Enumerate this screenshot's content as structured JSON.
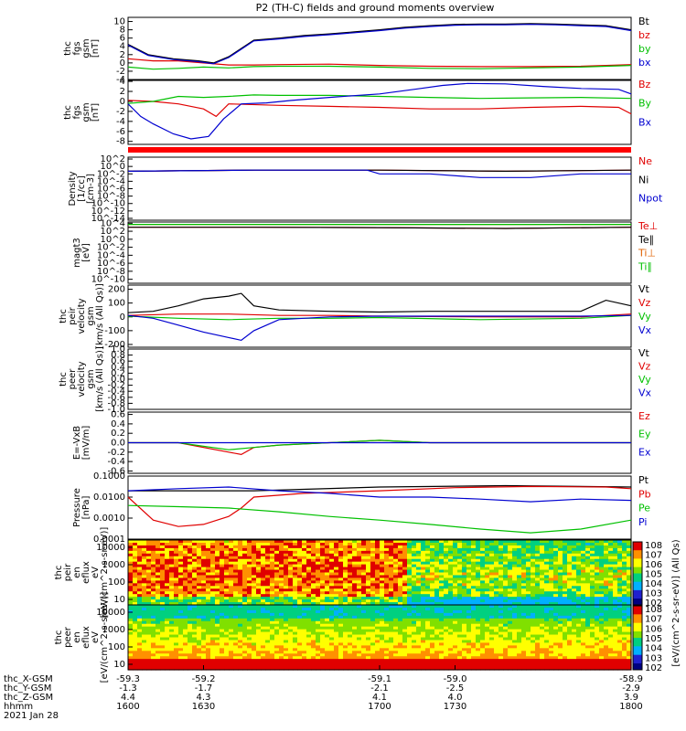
{
  "title": "P2 (TH-C) fields and ground moments overview",
  "x_axis": {
    "tick_labels_row1": [
      "-59.3",
      "-59.2",
      "-59.1",
      "-59.0",
      "-58.9"
    ],
    "tick_labels_row2": [
      "-1.3",
      "-1.7",
      "-2.1",
      "-2.5",
      "-2.9"
    ],
    "tick_labels_row3": [
      "4.4",
      "4.3",
      "4.1",
      "4.0",
      "3.9"
    ],
    "tick_labels_row4": [
      "1600",
      "1630",
      "1700",
      "1730",
      "1800"
    ],
    "row_labels": [
      "thc_X-GSM",
      "thc_Y-GSM",
      "thc_Z-GSM",
      "hhmm"
    ],
    "date": "2021 Jan 28"
  },
  "colorbar": {
    "label": "[eV/(cm^2-s-sr-eV)] (All Qs)",
    "top_ticks": [
      "10^8",
      "10^7",
      "10^6",
      "10^5",
      "10^4",
      "10^3",
      "10^2"
    ],
    "bottom_ticks": [
      "10^8",
      "10^7",
      "10^6",
      "10^5",
      "10^4",
      "10^3",
      "10^2"
    ]
  },
  "chart_data": [
    {
      "type": "line",
      "panel": "fgs_gsm",
      "ylabel": [
        "thc",
        "fgs",
        "gsm",
        "[nT]"
      ],
      "yticks": [
        "10",
        "8",
        "6",
        "4",
        "2",
        "0",
        "-2",
        "-4"
      ],
      "ylim": [
        -4,
        11
      ],
      "series": [
        {
          "name": "Bt",
          "color": "#000000",
          "x": [
            1600,
            1608,
            1618,
            1628,
            1634,
            1640,
            1650,
            1660,
            1670,
            1680,
            1690,
            1700,
            1710,
            1720,
            1730,
            1740,
            1750,
            1760,
            1770,
            1780,
            1790,
            1800
          ],
          "y": [
            4.5,
            2.0,
            1.0,
            0.5,
            0.0,
            1.5,
            5.5,
            6.0,
            6.6,
            7.0,
            7.5,
            8.0,
            8.6,
            9.0,
            9.3,
            9.4,
            9.4,
            9.5,
            9.4,
            9.2,
            9.0,
            8.0
          ]
        },
        {
          "name": "bz",
          "color": "#e00000",
          "x": [
            1600,
            1610,
            1620,
            1630,
            1640,
            1650,
            1660,
            1680,
            1700,
            1720,
            1740,
            1760,
            1780,
            1800
          ],
          "y": [
            1.0,
            0.5,
            0.5,
            0.0,
            -0.5,
            -0.5,
            -0.4,
            -0.3,
            -0.6,
            -0.8,
            -0.9,
            -0.9,
            -0.8,
            -0.4
          ]
        },
        {
          "name": "by",
          "color": "#00c000",
          "x": [
            1600,
            1610,
            1620,
            1630,
            1640,
            1650,
            1660,
            1680,
            1700,
            1720,
            1740,
            1760,
            1780,
            1800
          ],
          "y": [
            -1.0,
            -1.5,
            -1.3,
            -1.0,
            -1.2,
            -0.9,
            -0.8,
            -0.8,
            -1.0,
            -1.3,
            -1.4,
            -1.2,
            -1.0,
            -0.6
          ]
        },
        {
          "name": "bx",
          "color": "#0000d0",
          "x": [
            1600,
            1608,
            1618,
            1628,
            1634,
            1640,
            1650,
            1660,
            1670,
            1680,
            1690,
            1700,
            1710,
            1720,
            1730,
            1740,
            1750,
            1760,
            1770,
            1780,
            1790,
            1800
          ],
          "y": [
            4.3,
            1.8,
            0.8,
            0.3,
            -0.2,
            1.3,
            5.3,
            5.8,
            6.4,
            6.8,
            7.3,
            7.8,
            8.4,
            8.8,
            9.1,
            9.2,
            9.2,
            9.3,
            9.2,
            9.0,
            8.8,
            7.8
          ]
        }
      ],
      "legend": [
        "Bt",
        "bz",
        "by",
        "bx"
      ]
    },
    {
      "type": "line",
      "panel": "fgs_gsm_components",
      "ylabel": [
        "thc",
        "fgs",
        "gsm",
        "[nT]"
      ],
      "yticks": [
        "4",
        "2",
        "0",
        "-2",
        "-4",
        "-6",
        "-8"
      ],
      "ylim": [
        -8.6,
        4.2
      ],
      "series": [
        {
          "name": "Bz",
          "color": "#e00000",
          "x": [
            1600,
            1610,
            1620,
            1630,
            1635,
            1640,
            1660,
            1680,
            1700,
            1720,
            1740,
            1760,
            1780,
            1795,
            1800
          ],
          "y": [
            0.2,
            0.0,
            -0.5,
            -1.5,
            -3.0,
            -0.5,
            -0.8,
            -1.0,
            -1.2,
            -1.5,
            -1.5,
            -1.2,
            -1.0,
            -1.2,
            -2.5
          ]
        },
        {
          "name": "By",
          "color": "#00c000",
          "x": [
            1600,
            1610,
            1620,
            1630,
            1640,
            1650,
            1660,
            1680,
            1700,
            1720,
            1740,
            1760,
            1780,
            1800
          ],
          "y": [
            -0.4,
            0.0,
            1.0,
            0.8,
            1.0,
            1.3,
            1.2,
            1.2,
            1.0,
            0.8,
            0.6,
            0.7,
            0.8,
            0.6
          ]
        },
        {
          "name": "Bx",
          "color": "#0000d0",
          "x": [
            1600,
            1605,
            1610,
            1618,
            1625,
            1632,
            1638,
            1645,
            1655,
            1665,
            1680,
            1700,
            1715,
            1725,
            1735,
            1750,
            1765,
            1780,
            1795,
            1800
          ],
          "y": [
            -0.5,
            -3.0,
            -4.5,
            -6.5,
            -7.5,
            -7.0,
            -3.5,
            -0.5,
            -0.3,
            0.2,
            0.8,
            1.5,
            2.5,
            3.2,
            3.6,
            3.5,
            3.0,
            2.6,
            2.4,
            1.5
          ]
        }
      ],
      "legend": [
        "Bz",
        "By",
        "Bx"
      ]
    },
    {
      "type": "line",
      "panel": "density",
      "ylabel": [
        "Density",
        "[1/cc]",
        "[cm-3]"
      ],
      "yticks": [
        "10^2",
        "10^0",
        "10^-2",
        "10^-4",
        "10^-6",
        "10^-8",
        "10^-10",
        "10^-12",
        "10^-14"
      ],
      "ylim_log10": [
        -14.5,
        2.5
      ],
      "series": [
        {
          "name": "Ne",
          "color": "#e00000",
          "x": [
            1600,
            1650,
            1700,
            1750,
            1800
          ],
          "y": [
            0.05,
            0.1,
            0.1,
            0.05,
            0.1
          ]
        },
        {
          "name": "Ni",
          "color": "#000000",
          "x": [
            1600,
            1650,
            1700,
            1750,
            1800
          ],
          "y": [
            0.05,
            0.1,
            0.1,
            0.05,
            0.1
          ]
        },
        {
          "name": "Npot",
          "color": "#0000d0",
          "x": [
            1600,
            1650,
            1695,
            1700,
            1720,
            1740,
            1760,
            1780,
            1800
          ],
          "y": [
            0.05,
            0.1,
            0.1,
            0.01,
            0.01,
            0.001,
            0.001,
            0.01,
            0.01
          ]
        }
      ],
      "legend": [
        "Ne",
        "Ni",
        "Npot"
      ]
    },
    {
      "type": "line",
      "panel": "temperature",
      "ylabel": [
        "magt3",
        "[eV]"
      ],
      "yticks": [
        "10^4",
        "10^2",
        "10^0",
        "10^-2",
        "10^-4",
        "10^-6",
        "10^-8",
        "10^-10"
      ],
      "ylim_log10": [
        -11,
        4.3
      ],
      "series": [
        {
          "name": "Te⊥",
          "color": "#e00000",
          "x": [
            1600,
            1650,
            1700,
            1750,
            1800
          ],
          "y": [
            1000,
            1000,
            800,
            500,
            1000
          ]
        },
        {
          "name": "Te∥",
          "color": "#000000",
          "x": [
            1600,
            1650,
            1700,
            1750,
            1800
          ],
          "y": [
            1000,
            1000,
            800,
            500,
            1000
          ]
        },
        {
          "name": "Ti⊥",
          "color": "#e06000",
          "x": [
            1600,
            1650,
            1700,
            1750,
            1800
          ],
          "y": [
            5000,
            5000,
            5000,
            5000,
            5000
          ]
        },
        {
          "name": "Ti∥",
          "color": "#00c000",
          "x": [
            1600,
            1650,
            1700,
            1750,
            1800
          ],
          "y": [
            5000,
            5000,
            5000,
            5000,
            5000
          ]
        }
      ],
      "legend": [
        "Te⊥",
        "Te∥",
        "Ti⊥",
        "Ti∥"
      ]
    },
    {
      "type": "line",
      "panel": "peir_velocity",
      "ylabel": [
        "thc",
        "peir",
        "velocity",
        "gsm",
        "[km/s (All Qs)]"
      ],
      "yticks": [
        "200",
        "100",
        "0",
        "-100",
        "-200"
      ],
      "ylim": [
        -220,
        230
      ],
      "series": [
        {
          "name": "Vt",
          "color": "#000000",
          "x": [
            1600,
            1610,
            1620,
            1630,
            1640,
            1645,
            1650,
            1660,
            1680,
            1700,
            1720,
            1740,
            1760,
            1780,
            1790,
            1800
          ],
          "y": [
            30,
            40,
            80,
            130,
            150,
            170,
            80,
            50,
            40,
            35,
            40,
            40,
            40,
            40,
            120,
            80
          ]
        },
        {
          "name": "Vz",
          "color": "#e00000",
          "x": [
            1600,
            1620,
            1640,
            1660,
            1680,
            1700,
            1740,
            1780,
            1800
          ],
          "y": [
            10,
            20,
            20,
            10,
            10,
            5,
            0,
            0,
            20
          ]
        },
        {
          "name": "Vy",
          "color": "#00c000",
          "x": [
            1600,
            1620,
            1640,
            1660,
            1680,
            1700,
            1740,
            1780,
            1800
          ],
          "y": [
            5,
            -10,
            -20,
            -10,
            -10,
            -5,
            -20,
            -10,
            10
          ]
        },
        {
          "name": "Vx",
          "color": "#0000d0",
          "x": [
            1600,
            1610,
            1620,
            1630,
            1640,
            1645,
            1650,
            1660,
            1680,
            1700,
            1740,
            1780,
            1800
          ],
          "y": [
            10,
            -10,
            -60,
            -110,
            -150,
            -170,
            -100,
            -20,
            0,
            5,
            5,
            5,
            10
          ]
        }
      ],
      "legend": [
        "Vt",
        "Vz",
        "Vy",
        "Vx"
      ]
    },
    {
      "type": "line",
      "panel": "peer_velocity",
      "ylabel": [
        "thc",
        "peer",
        "velocity",
        "gsm",
        "[km/s (All Qs)]"
      ],
      "yticks": [
        "1.0",
        "0.8",
        "0.6",
        "0.4",
        "0.2",
        "0.0",
        "-0.2",
        "-0.4",
        "-0.6",
        "-0.8",
        "-1.0"
      ],
      "ylim": [
        -1.0,
        1.0
      ],
      "series": [],
      "legend": [
        "Vt",
        "Vz",
        "Vy",
        "Vx"
      ]
    },
    {
      "type": "line",
      "panel": "efield",
      "ylabel": [
        "E=-VxB",
        "[mV/m]"
      ],
      "yticks": [
        "0.6",
        "0.4",
        "0.2",
        "0.0",
        "-0.2",
        "-0.4",
        "-0.6"
      ],
      "ylim": [
        -0.65,
        0.65
      ],
      "series": [
        {
          "name": "Ez",
          "color": "#e00000",
          "x": [
            1600,
            1620,
            1640,
            1645,
            1650,
            1660,
            1680,
            1700,
            1720,
            1740,
            1760,
            1780,
            1800
          ],
          "y": [
            0.0,
            0.0,
            -0.2,
            -0.25,
            -0.1,
            -0.05,
            0.0,
            0.05,
            0.0,
            0.0,
            0.0,
            0.0,
            0.0
          ]
        },
        {
          "name": "Ey",
          "color": "#00c000",
          "x": [
            1600,
            1620,
            1640,
            1650,
            1660,
            1680,
            1700,
            1720,
            1740,
            1760,
            1780,
            1800
          ],
          "y": [
            0.0,
            0.0,
            -0.15,
            -0.1,
            -0.05,
            0.0,
            0.05,
            0.0,
            0.0,
            0.0,
            0.0,
            0.0
          ]
        },
        {
          "name": "Ex",
          "color": "#0000d0",
          "x": [
            1600,
            1650,
            1700,
            1750,
            1800
          ],
          "y": [
            0.0,
            0.0,
            0.0,
            0.0,
            0.0
          ]
        }
      ],
      "legend": [
        "Ez",
        "Ey",
        "Ex"
      ]
    },
    {
      "type": "line",
      "panel": "pressure",
      "ylabel": [
        "Pressure",
        "[nPa]"
      ],
      "yticks": [
        "0.1000",
        "0.0100",
        "0.0010",
        "0.0001"
      ],
      "ylim_log10": [
        -4,
        -1
      ],
      "series": [
        {
          "name": "Pt",
          "color": "#000000",
          "x": [
            1600,
            1650,
            1700,
            1750,
            1800
          ],
          "y": [
            0.02,
            0.02,
            0.03,
            0.035,
            0.03
          ]
        },
        {
          "name": "Pb",
          "color": "#e00000",
          "x": [
            1600,
            1610,
            1620,
            1630,
            1640,
            1645,
            1650,
            1670,
            1700,
            1730,
            1760,
            1790,
            1800
          ],
          "y": [
            0.01,
            0.0008,
            0.0004,
            0.0005,
            0.0012,
            0.003,
            0.01,
            0.015,
            0.02,
            0.028,
            0.032,
            0.03,
            0.025
          ]
        },
        {
          "name": "Pe",
          "color": "#00c000",
          "x": [
            1600,
            1620,
            1640,
            1660,
            1680,
            1700,
            1720,
            1740,
            1760,
            1780,
            1800
          ],
          "y": [
            0.004,
            0.0035,
            0.003,
            0.002,
            0.0012,
            0.0008,
            0.0005,
            0.0003,
            0.0002,
            0.0003,
            0.0008
          ]
        },
        {
          "name": "Pi",
          "color": "#0000d0",
          "x": [
            1600,
            1620,
            1640,
            1660,
            1680,
            1700,
            1720,
            1740,
            1760,
            1780,
            1800
          ],
          "y": [
            0.02,
            0.025,
            0.03,
            0.02,
            0.015,
            0.01,
            0.01,
            0.008,
            0.006,
            0.008,
            0.007
          ]
        }
      ],
      "legend": [
        "Pt",
        "Pb",
        "Pe",
        "Pi"
      ]
    },
    {
      "type": "heatmap",
      "panel": "peir_en_eflux",
      "ylabel": [
        "thc",
        "peir",
        "en",
        "eflux",
        "eV",
        "[eV/(cm^2-s-sr-eV)]"
      ],
      "yticks": [
        "10000",
        "1000",
        "100",
        "10"
      ],
      "note": "ion energy spectrogram"
    },
    {
      "type": "heatmap",
      "panel": "peer_en_eflux",
      "ylabel": [
        "thc",
        "peer",
        "en",
        "eflux",
        "eV",
        "[eV/(cm^2-s-sr-eV)]"
      ],
      "yticks": [
        "10000",
        "1000",
        "100",
        "10"
      ],
      "note": "electron energy spectrogram"
    }
  ]
}
